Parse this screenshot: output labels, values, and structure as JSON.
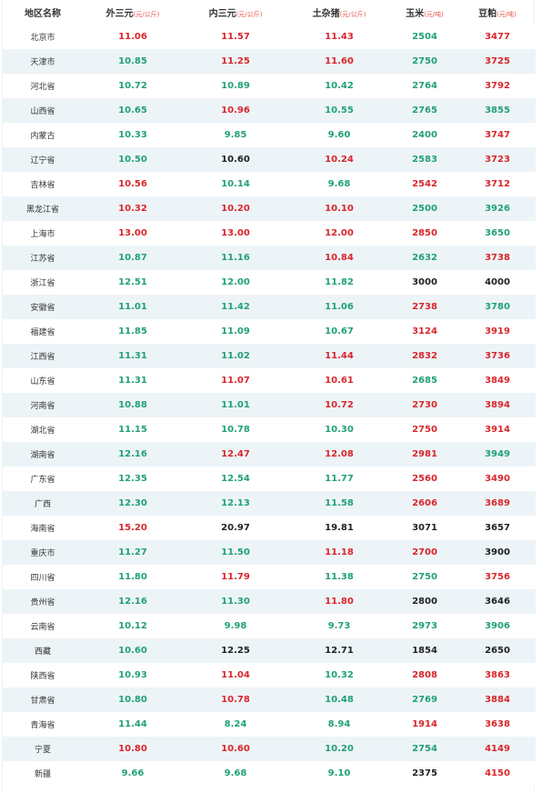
{
  "colors": {
    "up": "#d9262b",
    "down": "#21a07a",
    "flat": "#222222",
    "unit": "#e8574d",
    "stripe": "#edf4f7"
  },
  "header": {
    "region": "地区名称",
    "waisanyuan": "外三元",
    "waisanyuan_unit": "(元/公斤)",
    "neisanyuan": "内三元",
    "neisanyuan_unit": "(元/公斤)",
    "tuzazhu": "土杂猪",
    "tuzazhu_unit": "(元/公斤)",
    "corn": "玉米",
    "corn_unit": "(元/吨)",
    "soymeal": "豆粕",
    "soymeal_unit": "(元/吨)"
  },
  "rows": [
    {
      "region": "北京市",
      "cells": [
        {
          "v": "11.06",
          "t": "up"
        },
        {
          "v": "11.57",
          "t": "up"
        },
        {
          "v": "11.43",
          "t": "up"
        },
        {
          "v": "2504",
          "t": "down"
        },
        {
          "v": "3477",
          "t": "up"
        }
      ]
    },
    {
      "region": "天津市",
      "cells": [
        {
          "v": "10.85",
          "t": "down"
        },
        {
          "v": "11.25",
          "t": "up"
        },
        {
          "v": "11.60",
          "t": "up"
        },
        {
          "v": "2750",
          "t": "down"
        },
        {
          "v": "3725",
          "t": "up"
        }
      ]
    },
    {
      "region": "河北省",
      "cells": [
        {
          "v": "10.72",
          "t": "down"
        },
        {
          "v": "10.89",
          "t": "down"
        },
        {
          "v": "10.42",
          "t": "down"
        },
        {
          "v": "2764",
          "t": "down"
        },
        {
          "v": "3792",
          "t": "up"
        }
      ]
    },
    {
      "region": "山西省",
      "cells": [
        {
          "v": "10.65",
          "t": "down"
        },
        {
          "v": "10.96",
          "t": "up"
        },
        {
          "v": "10.55",
          "t": "down"
        },
        {
          "v": "2765",
          "t": "down"
        },
        {
          "v": "3855",
          "t": "down"
        }
      ]
    },
    {
      "region": "内蒙古",
      "cells": [
        {
          "v": "10.33",
          "t": "down"
        },
        {
          "v": "9.85",
          "t": "down"
        },
        {
          "v": "9.60",
          "t": "down"
        },
        {
          "v": "2400",
          "t": "down"
        },
        {
          "v": "3747",
          "t": "up"
        }
      ]
    },
    {
      "region": "辽宁省",
      "cells": [
        {
          "v": "10.50",
          "t": "down"
        },
        {
          "v": "10.60",
          "t": "flat"
        },
        {
          "v": "10.24",
          "t": "up"
        },
        {
          "v": "2583",
          "t": "down"
        },
        {
          "v": "3723",
          "t": "up"
        }
      ]
    },
    {
      "region": "吉林省",
      "cells": [
        {
          "v": "10.56",
          "t": "up"
        },
        {
          "v": "10.14",
          "t": "down"
        },
        {
          "v": "9.68",
          "t": "down"
        },
        {
          "v": "2542",
          "t": "up"
        },
        {
          "v": "3712",
          "t": "up"
        }
      ]
    },
    {
      "region": "黑龙江省",
      "cells": [
        {
          "v": "10.32",
          "t": "up"
        },
        {
          "v": "10.20",
          "t": "up"
        },
        {
          "v": "10.10",
          "t": "up"
        },
        {
          "v": "2500",
          "t": "down"
        },
        {
          "v": "3926",
          "t": "down"
        }
      ]
    },
    {
      "region": "上海市",
      "cells": [
        {
          "v": "13.00",
          "t": "up"
        },
        {
          "v": "13.00",
          "t": "up"
        },
        {
          "v": "12.00",
          "t": "up"
        },
        {
          "v": "2850",
          "t": "up"
        },
        {
          "v": "3650",
          "t": "down"
        }
      ]
    },
    {
      "region": "江苏省",
      "cells": [
        {
          "v": "10.87",
          "t": "down"
        },
        {
          "v": "11.16",
          "t": "down"
        },
        {
          "v": "10.84",
          "t": "up"
        },
        {
          "v": "2632",
          "t": "down"
        },
        {
          "v": "3738",
          "t": "up"
        }
      ]
    },
    {
      "region": "浙江省",
      "cells": [
        {
          "v": "12.51",
          "t": "down"
        },
        {
          "v": "12.00",
          "t": "down"
        },
        {
          "v": "11.82",
          "t": "down"
        },
        {
          "v": "3000",
          "t": "flat"
        },
        {
          "v": "4000",
          "t": "flat"
        }
      ]
    },
    {
      "region": "安徽省",
      "cells": [
        {
          "v": "11.01",
          "t": "down"
        },
        {
          "v": "11.42",
          "t": "down"
        },
        {
          "v": "11.06",
          "t": "down"
        },
        {
          "v": "2738",
          "t": "up"
        },
        {
          "v": "3780",
          "t": "down"
        }
      ]
    },
    {
      "region": "福建省",
      "cells": [
        {
          "v": "11.85",
          "t": "down"
        },
        {
          "v": "11.09",
          "t": "down"
        },
        {
          "v": "10.67",
          "t": "down"
        },
        {
          "v": "3124",
          "t": "up"
        },
        {
          "v": "3919",
          "t": "up"
        }
      ]
    },
    {
      "region": "江西省",
      "cells": [
        {
          "v": "11.31",
          "t": "down"
        },
        {
          "v": "11.02",
          "t": "down"
        },
        {
          "v": "11.44",
          "t": "up"
        },
        {
          "v": "2832",
          "t": "up"
        },
        {
          "v": "3736",
          "t": "up"
        }
      ]
    },
    {
      "region": "山东省",
      "cells": [
        {
          "v": "11.31",
          "t": "down"
        },
        {
          "v": "11.07",
          "t": "up"
        },
        {
          "v": "10.61",
          "t": "up"
        },
        {
          "v": "2685",
          "t": "down"
        },
        {
          "v": "3849",
          "t": "up"
        }
      ]
    },
    {
      "region": "河南省",
      "cells": [
        {
          "v": "10.88",
          "t": "down"
        },
        {
          "v": "11.01",
          "t": "down"
        },
        {
          "v": "10.72",
          "t": "up"
        },
        {
          "v": "2730",
          "t": "up"
        },
        {
          "v": "3894",
          "t": "up"
        }
      ]
    },
    {
      "region": "湖北省",
      "cells": [
        {
          "v": "11.15",
          "t": "down"
        },
        {
          "v": "10.78",
          "t": "down"
        },
        {
          "v": "10.30",
          "t": "down"
        },
        {
          "v": "2750",
          "t": "up"
        },
        {
          "v": "3914",
          "t": "up"
        }
      ]
    },
    {
      "region": "湖南省",
      "cells": [
        {
          "v": "12.16",
          "t": "down"
        },
        {
          "v": "12.47",
          "t": "up"
        },
        {
          "v": "12.08",
          "t": "up"
        },
        {
          "v": "2981",
          "t": "up"
        },
        {
          "v": "3949",
          "t": "down"
        }
      ]
    },
    {
      "region": "广东省",
      "cells": [
        {
          "v": "12.35",
          "t": "down"
        },
        {
          "v": "12.54",
          "t": "down"
        },
        {
          "v": "11.77",
          "t": "down"
        },
        {
          "v": "2560",
          "t": "up"
        },
        {
          "v": "3490",
          "t": "up"
        }
      ]
    },
    {
      "region": "广西",
      "cells": [
        {
          "v": "12.30",
          "t": "down"
        },
        {
          "v": "12.13",
          "t": "down"
        },
        {
          "v": "11.58",
          "t": "down"
        },
        {
          "v": "2606",
          "t": "up"
        },
        {
          "v": "3689",
          "t": "up"
        }
      ]
    },
    {
      "region": "海南省",
      "cells": [
        {
          "v": "15.20",
          "t": "up"
        },
        {
          "v": "20.97",
          "t": "flat"
        },
        {
          "v": "19.81",
          "t": "flat"
        },
        {
          "v": "3071",
          "t": "flat"
        },
        {
          "v": "3657",
          "t": "flat"
        }
      ]
    },
    {
      "region": "重庆市",
      "cells": [
        {
          "v": "11.27",
          "t": "down"
        },
        {
          "v": "11.50",
          "t": "down"
        },
        {
          "v": "11.18",
          "t": "up"
        },
        {
          "v": "2700",
          "t": "up"
        },
        {
          "v": "3900",
          "t": "flat"
        }
      ]
    },
    {
      "region": "四川省",
      "cells": [
        {
          "v": "11.80",
          "t": "down"
        },
        {
          "v": "11.79",
          "t": "up"
        },
        {
          "v": "11.38",
          "t": "down"
        },
        {
          "v": "2750",
          "t": "down"
        },
        {
          "v": "3756",
          "t": "up"
        }
      ]
    },
    {
      "region": "贵州省",
      "cells": [
        {
          "v": "12.16",
          "t": "down"
        },
        {
          "v": "11.30",
          "t": "down"
        },
        {
          "v": "11.80",
          "t": "up"
        },
        {
          "v": "2800",
          "t": "flat"
        },
        {
          "v": "3646",
          "t": "flat"
        }
      ]
    },
    {
      "region": "云南省",
      "cells": [
        {
          "v": "10.12",
          "t": "down"
        },
        {
          "v": "9.98",
          "t": "down"
        },
        {
          "v": "9.73",
          "t": "down"
        },
        {
          "v": "2973",
          "t": "down"
        },
        {
          "v": "3906",
          "t": "down"
        }
      ]
    },
    {
      "region": "西藏",
      "cells": [
        {
          "v": "10.60",
          "t": "down"
        },
        {
          "v": "12.25",
          "t": "flat"
        },
        {
          "v": "12.71",
          "t": "flat"
        },
        {
          "v": "1854",
          "t": "flat"
        },
        {
          "v": "2650",
          "t": "flat"
        }
      ]
    },
    {
      "region": "陕西省",
      "cells": [
        {
          "v": "10.93",
          "t": "down"
        },
        {
          "v": "11.04",
          "t": "up"
        },
        {
          "v": "10.32",
          "t": "down"
        },
        {
          "v": "2808",
          "t": "up"
        },
        {
          "v": "3863",
          "t": "up"
        }
      ]
    },
    {
      "region": "甘肃省",
      "cells": [
        {
          "v": "10.80",
          "t": "down"
        },
        {
          "v": "10.78",
          "t": "up"
        },
        {
          "v": "10.48",
          "t": "down"
        },
        {
          "v": "2769",
          "t": "down"
        },
        {
          "v": "3884",
          "t": "up"
        }
      ]
    },
    {
      "region": "青海省",
      "cells": [
        {
          "v": "11.44",
          "t": "down"
        },
        {
          "v": "8.24",
          "t": "down"
        },
        {
          "v": "8.94",
          "t": "down"
        },
        {
          "v": "1914",
          "t": "up"
        },
        {
          "v": "3638",
          "t": "up"
        }
      ]
    },
    {
      "region": "宁夏",
      "cells": [
        {
          "v": "10.80",
          "t": "up"
        },
        {
          "v": "10.60",
          "t": "up"
        },
        {
          "v": "10.20",
          "t": "down"
        },
        {
          "v": "2754",
          "t": "down"
        },
        {
          "v": "4149",
          "t": "up"
        }
      ]
    },
    {
      "region": "新疆",
      "cells": [
        {
          "v": "9.66",
          "t": "down"
        },
        {
          "v": "9.68",
          "t": "down"
        },
        {
          "v": "9.10",
          "t": "down"
        },
        {
          "v": "2375",
          "t": "flat"
        },
        {
          "v": "4150",
          "t": "up"
        }
      ]
    }
  ]
}
